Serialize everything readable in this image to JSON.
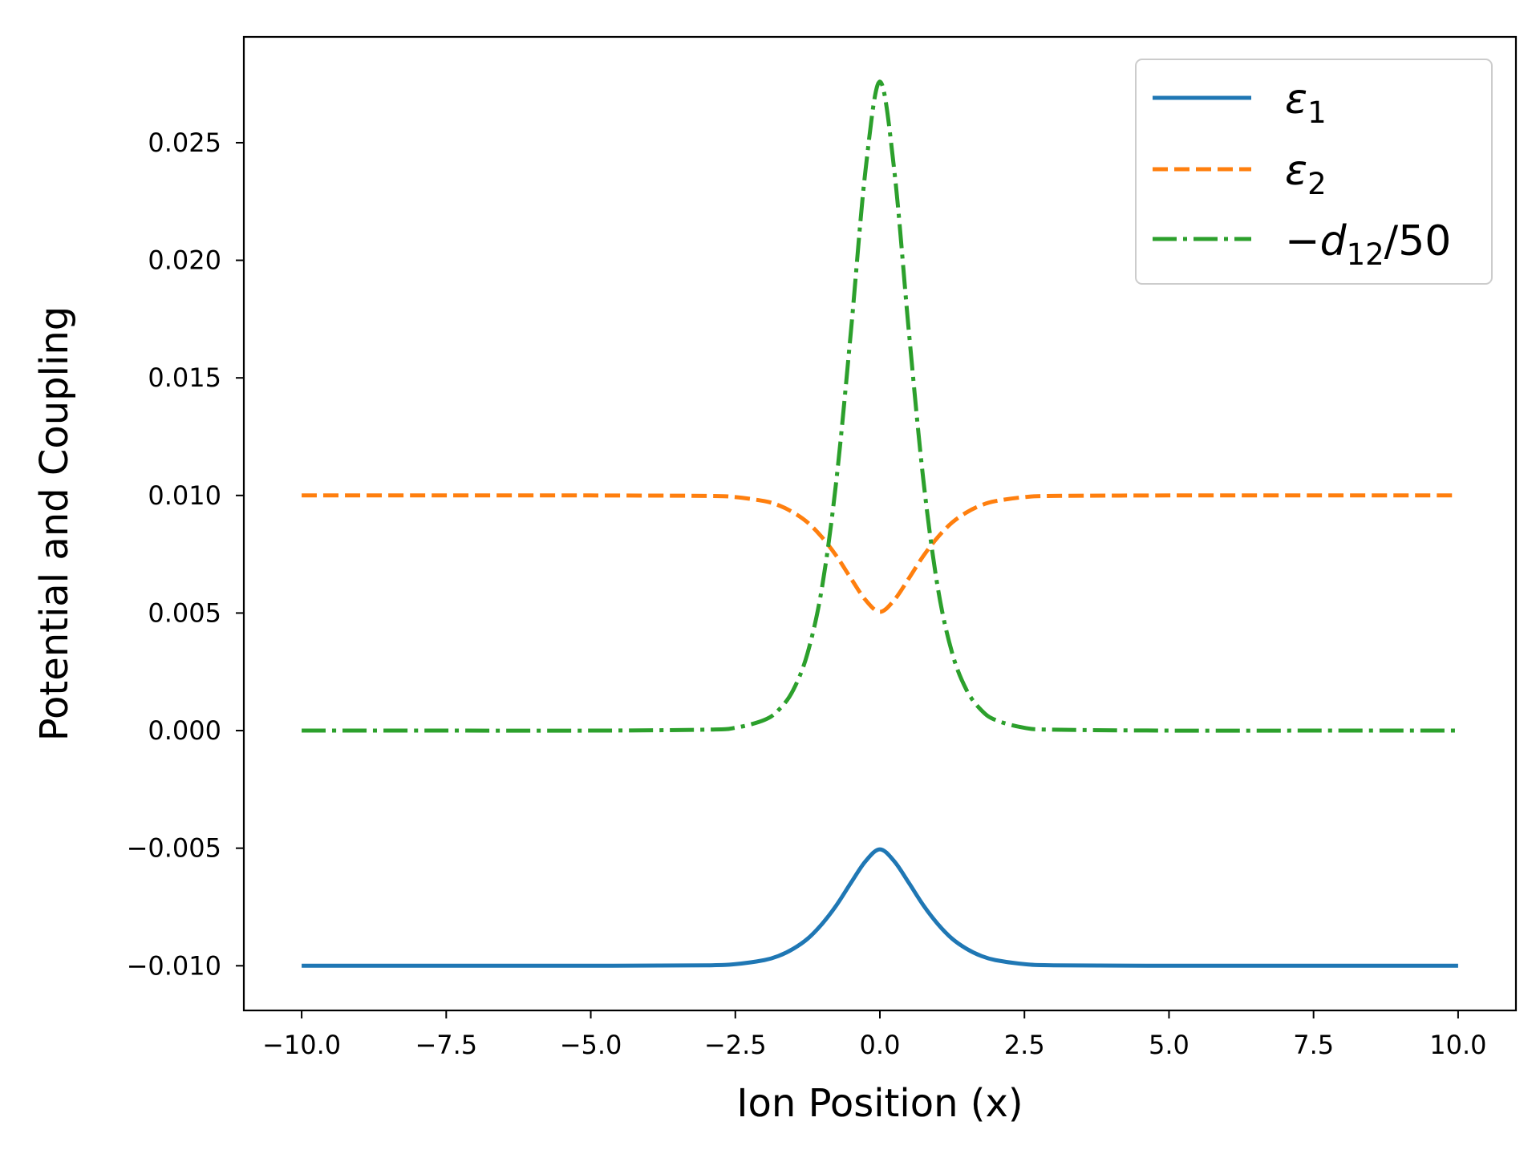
{
  "chart_data": {
    "type": "line",
    "title": "",
    "xlabel": "Ion Position (x)",
    "ylabel": "Potential and Coupling",
    "xlim": [
      -11.0,
      11.0
    ],
    "ylim": [
      -0.0119,
      0.0295
    ],
    "xticks": [
      -10.0,
      -7.5,
      -5.0,
      -2.5,
      0.0,
      2.5,
      5.0,
      7.5,
      10.0
    ],
    "xtick_labels": [
      "−10.0",
      "−7.5",
      "−5.0",
      "−2.5",
      "0.0",
      "2.5",
      "5.0",
      "7.5",
      "10.0"
    ],
    "yticks": [
      -0.01,
      -0.005,
      0.0,
      0.005,
      0.01,
      0.015,
      0.02,
      0.025
    ],
    "ytick_labels": [
      "−0.010",
      "−0.005",
      "0.000",
      "0.005",
      "0.010",
      "0.015",
      "0.020",
      "0.025"
    ],
    "grid": false,
    "legend_position": "top-right",
    "x": [
      -10.0,
      -7.5,
      -5.0,
      -3.0,
      -2.5,
      -2.0,
      -1.75,
      -1.5,
      -1.25,
      -1.0,
      -0.75,
      -0.5,
      -0.25,
      0.0,
      0.25,
      0.5,
      0.75,
      1.0,
      1.25,
      1.5,
      1.75,
      2.0,
      2.5,
      3.0,
      5.0,
      7.5,
      10.0
    ],
    "series": [
      {
        "name_main": "ε",
        "name_sub": "1",
        "color": "#1f77b4",
        "style": "solid",
        "values": [
          -0.01,
          -0.01,
          -0.01,
          -0.00998,
          -0.00993,
          -0.00976,
          -0.00958,
          -0.00928,
          -0.00885,
          -0.00822,
          -0.00742,
          -0.00647,
          -0.00556,
          -0.00505,
          -0.00556,
          -0.00647,
          -0.00742,
          -0.00822,
          -0.00885,
          -0.00928,
          -0.00958,
          -0.00976,
          -0.00993,
          -0.00998,
          -0.01,
          -0.01,
          -0.01
        ]
      },
      {
        "name_main": "ε",
        "name_sub": "2",
        "color": "#ff7f0e",
        "style": "dashed",
        "values": [
          0.01,
          0.01,
          0.01,
          0.00998,
          0.00993,
          0.00976,
          0.00958,
          0.00928,
          0.00885,
          0.00822,
          0.00742,
          0.00647,
          0.00556,
          0.00505,
          0.00556,
          0.00647,
          0.00742,
          0.00822,
          0.00885,
          0.00928,
          0.00958,
          0.00976,
          0.00993,
          0.00998,
          0.01,
          0.01,
          0.01
        ]
      },
      {
        "name_main": "−d",
        "name_sub": "12",
        "name_tail": "/50",
        "color": "#2ca02c",
        "style": "dashdot",
        "values": [
          0.0,
          0.0,
          0.0,
          4e-05,
          0.00012,
          0.00045,
          0.00088,
          0.00172,
          0.0033,
          0.0061,
          0.0107,
          0.017,
          0.0238,
          0.0276,
          0.0238,
          0.017,
          0.0107,
          0.0061,
          0.0033,
          0.00172,
          0.00088,
          0.00045,
          0.00012,
          4e-05,
          0.0,
          0.0,
          0.0
        ]
      }
    ]
  }
}
